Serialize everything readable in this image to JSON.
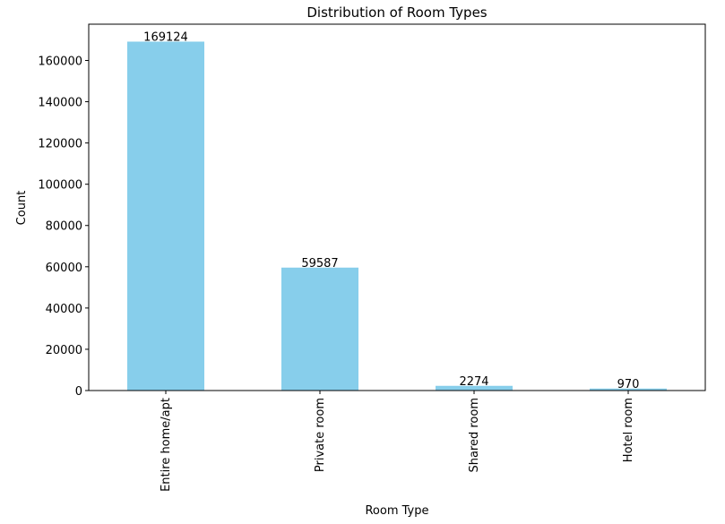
{
  "chart_data": {
    "type": "bar",
    "title": "Distribution of Room Types",
    "xlabel": "Room Type",
    "ylabel": "Count",
    "categories": [
      "Entire home/apt",
      "Private room",
      "Shared room",
      "Hotel room"
    ],
    "values": [
      169124,
      59587,
      2274,
      970
    ],
    "data_labels": [
      "169124",
      "59587",
      "2274",
      "970"
    ],
    "ylim": [
      0,
      177580
    ],
    "yticks": [
      0,
      20000,
      40000,
      60000,
      80000,
      100000,
      120000,
      140000,
      160000
    ],
    "ytick_labels": [
      "0",
      "20000",
      "40000",
      "60000",
      "80000",
      "100000",
      "120000",
      "140000",
      "160000"
    ],
    "bar_color": "#87ceeb",
    "grid": false,
    "legend": false
  }
}
